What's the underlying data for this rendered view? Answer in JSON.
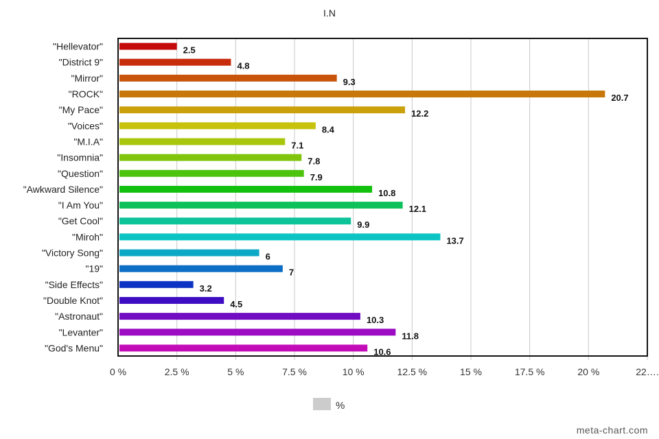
{
  "chart_data": {
    "type": "bar",
    "orientation": "horizontal",
    "title": "I.N",
    "categories": [
      "\"Hellevator\"",
      "\"District 9\"",
      "\"Mirror\"",
      "\"ROCK\"",
      "\"My Pace\"",
      "\"Voices\"",
      "\"M.I.A\"",
      "\"Insomnia\"",
      "\"Question\"",
      "\"Awkward Silence\"",
      "\"I Am You\"",
      "\"Get Cool\"",
      "\"Miroh\"",
      "\"Victory Song\"",
      "\"19\"",
      "\"Side Effects\"",
      "\"Double Knot\"",
      "\"Astronaut\"",
      "\"Levanter\"",
      "\"God's Menu\""
    ],
    "values": [
      2.5,
      4.8,
      9.3,
      20.7,
      12.2,
      8.4,
      7.1,
      7.8,
      7.9,
      10.8,
      12.1,
      9.9,
      13.7,
      6,
      7,
      3.2,
      4.5,
      10.3,
      11.8,
      10.6
    ],
    "value_labels": [
      "2.5",
      "4.8",
      "9.3",
      "20.7",
      "12.2",
      "8.4",
      "7.1",
      "7.8",
      "7.9",
      "10.8",
      "12.1",
      "9.9",
      "13.7",
      "6",
      "7",
      "3.2",
      "4.5",
      "10.3",
      "11.8",
      "10.6"
    ],
    "colors": [
      "#c40a0a",
      "#c72d0b",
      "#c8540b",
      "#c8780b",
      "#caa00b",
      "#c7c30c",
      "#a8c60c",
      "#80c40d",
      "#4cc30d",
      "#12c10d",
      "#0dc15a",
      "#0dc39a",
      "#0dc4c4",
      "#0da8c5",
      "#0d6ec6",
      "#0d34c2",
      "#3e0cc2",
      "#720cc3",
      "#9b0cc3",
      "#c30cb7"
    ],
    "xlim": [
      0,
      22.5
    ],
    "xticks": [
      0,
      2.5,
      5,
      7.5,
      10,
      12.5,
      15,
      17.5,
      20,
      22.5
    ],
    "xtick_labels": [
      "0 %",
      "2.5 %",
      "5 %",
      "7.5 %",
      "10 %",
      "12.5 %",
      "15 %",
      "17.5 %",
      "20 %",
      "22…."
    ],
    "grid": true,
    "legend": {
      "label": "%",
      "position": "bottom",
      "swatch_color": "#cccccc"
    }
  },
  "watermark": "meta-chart.com"
}
